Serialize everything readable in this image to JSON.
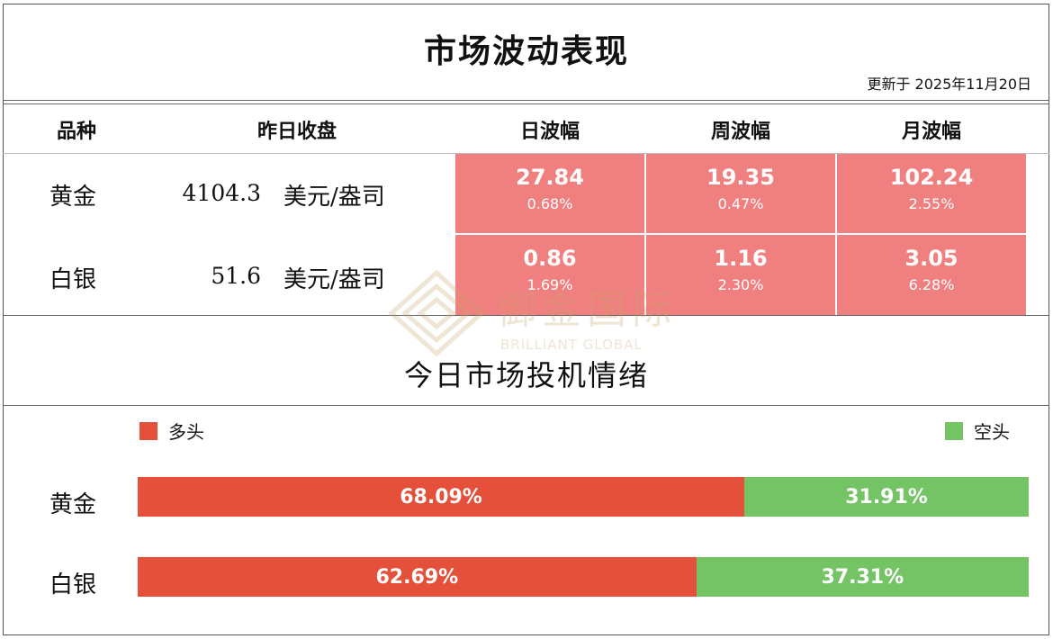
{
  "title": "市场波动表现",
  "updated": "更新于  2025年11月20日",
  "table": {
    "headers": [
      "品种",
      "昨日收盘",
      "日波幅",
      "周波幅",
      "月波幅"
    ],
    "unit": "美元/盎司",
    "rows": [
      {
        "name": "黄金",
        "close": "4104.3",
        "daily": {
          "value": "27.84",
          "pct": "0.68%"
        },
        "weekly": {
          "value": "19.35",
          "pct": "0.47%"
        },
        "monthly": {
          "value": "102.24",
          "pct": "2.55%"
        }
      },
      {
        "name": "白银",
        "close": "51.6",
        "daily": {
          "value": "0.86",
          "pct": "1.69%"
        },
        "weekly": {
          "value": "1.16",
          "pct": "2.30%"
        },
        "monthly": {
          "value": "3.05",
          "pct": "6.28%"
        }
      }
    ]
  },
  "sentiment": {
    "title": "今日市场投机情绪",
    "long_label": "多头",
    "short_label": "空头",
    "rows": [
      {
        "name": "黄金",
        "long_text": "68.09%",
        "short_text": "31.91%",
        "long_frac": 0.6809
      },
      {
        "name": "白银",
        "long_text": "62.69%",
        "short_text": "37.31%",
        "long_frac": 0.6269
      }
    ]
  },
  "watermark": {
    "cn": "御金国际",
    "en": "BRILLIANT GLOBAL"
  },
  "colors": {
    "cell": "#f07f7f",
    "long": "#e4503a",
    "short": "#74c466",
    "watermark": "#c9a46b"
  }
}
